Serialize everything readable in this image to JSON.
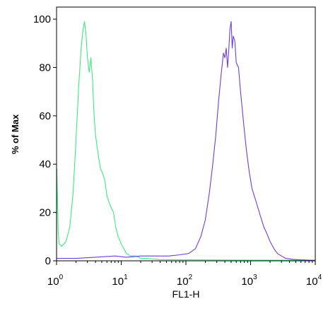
{
  "chart_data": {
    "type": "line",
    "xlabel": "FL1-H",
    "ylabel": "% of Max",
    "xscale": "log",
    "xlim": [
      1,
      10000
    ],
    "ylim": [
      0,
      105
    ],
    "grid": false,
    "legend": "none",
    "x_ticks": [
      {
        "base": "10",
        "exp": "0",
        "value": 1
      },
      {
        "base": "10",
        "exp": "1",
        "value": 10
      },
      {
        "base": "10",
        "exp": "2",
        "value": 100
      },
      {
        "base": "10",
        "exp": "3",
        "value": 1000
      },
      {
        "base": "10",
        "exp": "4",
        "value": 10000
      }
    ],
    "y_ticks": [
      {
        "label": "0",
        "value": 0
      },
      {
        "label": "20",
        "value": 20
      },
      {
        "label": "40",
        "value": 40
      },
      {
        "label": "60",
        "value": 60
      },
      {
        "label": "80",
        "value": 80
      },
      {
        "label": "100",
        "value": 100
      }
    ],
    "series": [
      {
        "color": "#3ee87e",
        "points": [
          [
            1.0,
            1
          ],
          [
            1.01,
            38
          ],
          [
            1.03,
            28
          ],
          [
            1.06,
            12
          ],
          [
            1.1,
            7
          ],
          [
            1.2,
            6
          ],
          [
            1.4,
            8
          ],
          [
            1.6,
            14
          ],
          [
            1.8,
            28
          ],
          [
            2.0,
            50
          ],
          [
            2.2,
            72
          ],
          [
            2.4,
            88
          ],
          [
            2.55,
            95
          ],
          [
            2.7,
            99
          ],
          [
            2.85,
            94
          ],
          [
            3.0,
            84
          ],
          [
            3.2,
            78
          ],
          [
            3.4,
            84
          ],
          [
            3.6,
            75
          ],
          [
            3.8,
            60
          ],
          [
            4.0,
            52
          ],
          [
            4.4,
            44
          ],
          [
            4.8,
            38
          ],
          [
            5.2,
            36
          ],
          [
            5.6,
            33
          ],
          [
            6.0,
            27
          ],
          [
            6.5,
            24
          ],
          [
            7.0,
            22
          ],
          [
            7.6,
            20
          ],
          [
            8.2,
            14
          ],
          [
            9.0,
            10
          ],
          [
            10.0,
            7
          ],
          [
            11.0,
            5
          ],
          [
            12.0,
            3
          ],
          [
            14.0,
            2
          ],
          [
            17.0,
            2
          ],
          [
            20.0,
            1
          ],
          [
            25.0,
            1
          ],
          [
            40.0,
            0.5
          ],
          [
            100.0,
            0.4
          ],
          [
            1000.0,
            0.3
          ],
          [
            10000.0,
            0.2
          ]
        ]
      },
      {
        "color": "#6a3fd8",
        "points": [
          [
            1.0,
            1
          ],
          [
            2.0,
            1
          ],
          [
            4.0,
            1.5
          ],
          [
            8.0,
            2
          ],
          [
            12.0,
            1.5
          ],
          [
            20.0,
            2
          ],
          [
            35.0,
            2
          ],
          [
            55.0,
            2
          ],
          [
            80.0,
            2.5
          ],
          [
            110.0,
            3
          ],
          [
            140.0,
            5
          ],
          [
            170.0,
            10
          ],
          [
            200.0,
            17
          ],
          [
            230.0,
            28
          ],
          [
            260.0,
            40
          ],
          [
            290.0,
            52
          ],
          [
            320.0,
            66
          ],
          [
            350.0,
            77
          ],
          [
            380.0,
            86
          ],
          [
            400.0,
            84
          ],
          [
            420.0,
            88
          ],
          [
            440.0,
            80
          ],
          [
            460.0,
            87
          ],
          [
            480.0,
            96
          ],
          [
            500.0,
            99
          ],
          [
            520.0,
            88
          ],
          [
            540.0,
            93
          ],
          [
            570.0,
            91
          ],
          [
            600.0,
            82
          ],
          [
            650.0,
            80
          ],
          [
            700.0,
            70
          ],
          [
            780.0,
            57
          ],
          [
            860.0,
            46
          ],
          [
            950.0,
            37
          ],
          [
            1050.0,
            30
          ],
          [
            1200.0,
            25
          ],
          [
            1400.0,
            19
          ],
          [
            1600.0,
            14
          ],
          [
            1800.0,
            11
          ],
          [
            2000.0,
            8
          ],
          [
            2300.0,
            5
          ],
          [
            2600.0,
            3
          ],
          [
            3000.0,
            2
          ],
          [
            3500.0,
            1
          ],
          [
            4500.0,
            0.6
          ],
          [
            6000.0,
            0.4
          ],
          [
            8000.0,
            0.3
          ],
          [
            10000.0,
            0.2
          ]
        ]
      }
    ]
  }
}
